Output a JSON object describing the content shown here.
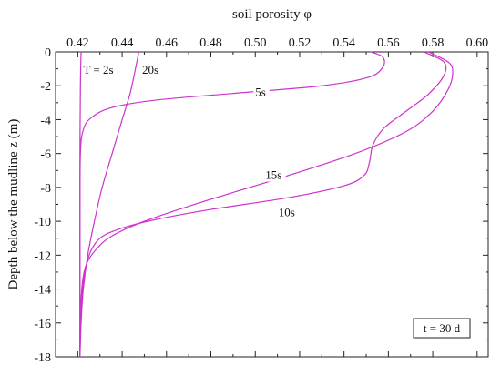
{
  "chart_data": {
    "type": "line",
    "title": "",
    "xlabel": "soil porosity φ",
    "ylabel": "Depth below the mudline z (m)",
    "xlim": [
      0.41,
      0.605
    ],
    "ylim": [
      -18,
      0
    ],
    "xticks": [
      0.42,
      0.44,
      0.46,
      0.48,
      0.5,
      0.52,
      0.54,
      0.56,
      0.58,
      0.6
    ],
    "xtick_labels": [
      "0.42",
      "0.44",
      "0.46",
      "0.48",
      "0.50",
      "0.52",
      "0.54",
      "0.56",
      "0.58",
      "0.60"
    ],
    "yticks": [
      0,
      -2,
      -4,
      -6,
      -8,
      -10,
      -12,
      -14,
      -16,
      -18
    ],
    "ytick_labels": [
      "0",
      "-2",
      "-4",
      "-6",
      "-8",
      "-10",
      "-12",
      "-14",
      "-16",
      "-18"
    ],
    "x_axis_position": "top",
    "grid": false,
    "line_color": "#cc33cc",
    "annotation": "t = 30 d",
    "series": [
      {
        "label": "T = 2s",
        "points": [
          [
            0.4215,
            0
          ],
          [
            0.4212,
            -2
          ],
          [
            0.421,
            -6
          ],
          [
            0.421,
            -10
          ],
          [
            0.421,
            -14
          ],
          [
            0.421,
            -18
          ]
        ]
      },
      {
        "label": "20s",
        "points": [
          [
            0.4475,
            0
          ],
          [
            0.446,
            -1
          ],
          [
            0.4435,
            -2.5
          ],
          [
            0.44,
            -4
          ],
          [
            0.4355,
            -6
          ],
          [
            0.431,
            -8
          ],
          [
            0.4275,
            -10
          ],
          [
            0.4245,
            -12
          ],
          [
            0.4225,
            -14
          ],
          [
            0.4215,
            -16
          ],
          [
            0.421,
            -18
          ]
        ]
      },
      {
        "label": "5s",
        "points": [
          [
            0.552,
            0
          ],
          [
            0.5575,
            -0.3
          ],
          [
            0.5575,
            -0.9
          ],
          [
            0.551,
            -1.5
          ],
          [
            0.53,
            -2.0
          ],
          [
            0.49,
            -2.45
          ],
          [
            0.455,
            -2.85
          ],
          [
            0.435,
            -3.3
          ],
          [
            0.426,
            -3.9
          ],
          [
            0.4225,
            -4.6
          ],
          [
            0.4212,
            -6
          ],
          [
            0.421,
            -10
          ],
          [
            0.421,
            -18
          ]
        ]
      },
      {
        "label": "15s",
        "points": [
          [
            0.578,
            0
          ],
          [
            0.587,
            -0.6
          ],
          [
            0.589,
            -1.2
          ],
          [
            0.587,
            -2.2
          ],
          [
            0.58,
            -3.5
          ],
          [
            0.568,
            -4.7
          ],
          [
            0.545,
            -6.0
          ],
          [
            0.51,
            -7.5
          ],
          [
            0.475,
            -8.9
          ],
          [
            0.45,
            -10.0
          ],
          [
            0.435,
            -10.9
          ],
          [
            0.428,
            -11.7
          ],
          [
            0.424,
            -12.5
          ],
          [
            0.4222,
            -13.5
          ],
          [
            0.4214,
            -15
          ],
          [
            0.421,
            -18
          ]
        ]
      },
      {
        "label": "10s",
        "points": [
          [
            0.576,
            0
          ],
          [
            0.585,
            -0.6
          ],
          [
            0.585,
            -1.4
          ],
          [
            0.578,
            -2.5
          ],
          [
            0.568,
            -3.5
          ],
          [
            0.558,
            -4.5
          ],
          [
            0.553,
            -5.5
          ],
          [
            0.5515,
            -6.5
          ],
          [
            0.549,
            -7.3
          ],
          [
            0.54,
            -7.9
          ],
          [
            0.515,
            -8.6
          ],
          [
            0.48,
            -9.3
          ],
          [
            0.455,
            -9.9
          ],
          [
            0.44,
            -10.4
          ],
          [
            0.431,
            -10.9
          ],
          [
            0.4265,
            -11.6
          ],
          [
            0.424,
            -12.5
          ],
          [
            0.4222,
            -14
          ],
          [
            0.4212,
            -16
          ],
          [
            0.421,
            -18
          ]
        ]
      }
    ],
    "curve_labels": [
      {
        "text": "T = 2s",
        "x": 0.4225,
        "y": -1.3
      },
      {
        "text": "20s",
        "x": 0.449,
        "y": -1.3
      },
      {
        "text": "5s",
        "x": 0.5,
        "y": -2.6
      },
      {
        "text": "15s",
        "x": 0.5045,
        "y": -7.5
      },
      {
        "text": "10s",
        "x": 0.5105,
        "y": -9.7
      }
    ]
  }
}
